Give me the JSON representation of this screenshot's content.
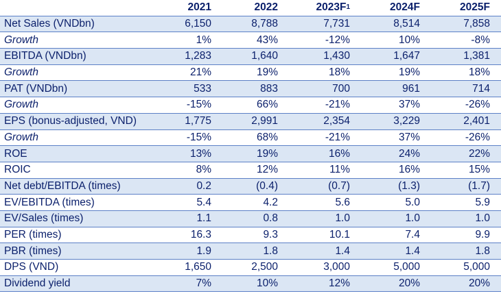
{
  "header": {
    "columns": [
      "2021",
      "2022",
      "2023F",
      "2024F",
      "2025F"
    ],
    "footnote_mark": "1"
  },
  "rows": [
    {
      "label": "Net Sales (VNDbn)",
      "italic": false,
      "values": [
        "6,150",
        "8,788",
        "7,731",
        "8,514",
        "7,858"
      ]
    },
    {
      "label": "Growth",
      "italic": true,
      "values": [
        "1%",
        "43%",
        "-12%",
        "10%",
        "-8%"
      ]
    },
    {
      "label": "EBITDA (VNDbn)",
      "italic": false,
      "values": [
        "1,283",
        "1,640",
        "1,430",
        "1,647",
        "1,381"
      ]
    },
    {
      "label": "Growth",
      "italic": true,
      "values": [
        "21%",
        "19%",
        "18%",
        "19%",
        "18%"
      ]
    },
    {
      "label": "PAT (VNDbn)",
      "italic": false,
      "values": [
        "533",
        "883",
        "700",
        "961",
        "714"
      ]
    },
    {
      "label": "Growth",
      "italic": true,
      "values": [
        "-15%",
        "66%",
        "-21%",
        "37%",
        "-26%"
      ]
    },
    {
      "label": "EPS (bonus-adjusted, VND)",
      "italic": false,
      "values": [
        "1,775",
        "2,991",
        "2,354",
        "3,229",
        "2,401"
      ]
    },
    {
      "label": "Growth",
      "italic": true,
      "values": [
        "-15%",
        "68%",
        "-21%",
        "37%",
        "-26%"
      ]
    },
    {
      "label": "ROE",
      "italic": false,
      "values": [
        "13%",
        "19%",
        "16%",
        "24%",
        "22%"
      ]
    },
    {
      "label": "ROIC",
      "italic": false,
      "values": [
        "8%",
        "12%",
        "11%",
        "16%",
        "15%"
      ]
    },
    {
      "label": "Net debt/EBITDA (times)",
      "italic": false,
      "values": [
        "0.2",
        "(0.4)",
        "(0.7)",
        "(1.3)",
        "(1.7)"
      ]
    },
    {
      "label": "EV/EBITDA (times)",
      "italic": false,
      "values": [
        "5.4",
        "4.2",
        "5.6",
        "5.0",
        "5.9"
      ]
    },
    {
      "label": "EV/Sales (times)",
      "italic": false,
      "values": [
        "1.1",
        "0.8",
        "1.0",
        "1.0",
        "1.0"
      ]
    },
    {
      "label": "PER (times)",
      "italic": false,
      "values": [
        "16.3",
        "9.3",
        "10.1",
        "7.4",
        "9.9"
      ]
    },
    {
      "label": "PBR (times)",
      "italic": false,
      "values": [
        "1.9",
        "1.8",
        "1.4",
        "1.4",
        "1.8"
      ]
    },
    {
      "label": "DPS (VND)",
      "italic": false,
      "values": [
        "1,650",
        "2,500",
        "3,000",
        "5,000",
        "5,000"
      ]
    },
    {
      "label": "Dividend yield",
      "italic": false,
      "values": [
        "7%",
        "10%",
        "12%",
        "20%",
        "20%"
      ]
    }
  ],
  "colors": {
    "text": "#0a1f6b",
    "shade": "#dbe6f4",
    "rule": "#5b7fc6"
  }
}
